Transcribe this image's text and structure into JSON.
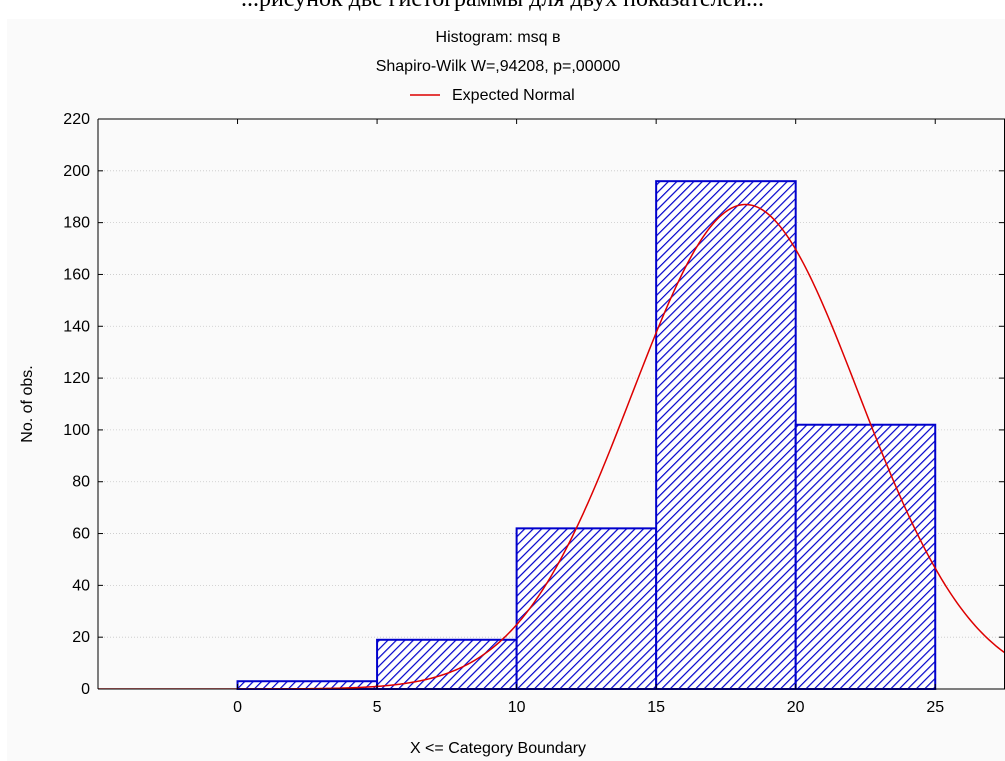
{
  "page_caption": "...рисунок две гистограммы для двух показателей...",
  "colors": {
    "bars": "#0000cc",
    "curve": "#dd0000",
    "background": "#fafafa",
    "grid": "#c8c8c8"
  },
  "chart_data": {
    "type": "bar",
    "title": "Histogram: msq в",
    "subtitle": "Shapiro-Wilk W=,94208, p=,00000",
    "xlabel": "X <= Category Boundary",
    "ylabel": "No. of obs.",
    "xlim": [
      -5,
      27.5
    ],
    "ylim": [
      0,
      220
    ],
    "xticks": [
      0,
      5,
      10,
      15,
      20,
      25
    ],
    "yticks": [
      0,
      20,
      40,
      60,
      80,
      100,
      120,
      140,
      160,
      180,
      200,
      220
    ],
    "bins": [
      {
        "from": 0,
        "to": 5,
        "count": 3
      },
      {
        "from": 5,
        "to": 10,
        "count": 19
      },
      {
        "from": 10,
        "to": 15,
        "count": 62
      },
      {
        "from": 15,
        "to": 20,
        "count": 196
      },
      {
        "from": 20,
        "to": 25,
        "count": 102
      }
    ],
    "curve": {
      "name": "Expected Normal",
      "mean": 18.2,
      "sd": 4.08,
      "peak": 187
    },
    "legend": {
      "position": "top",
      "entries": [
        "Expected Normal"
      ]
    },
    "grid": true,
    "bar_fill": "diagonal-hatch"
  }
}
